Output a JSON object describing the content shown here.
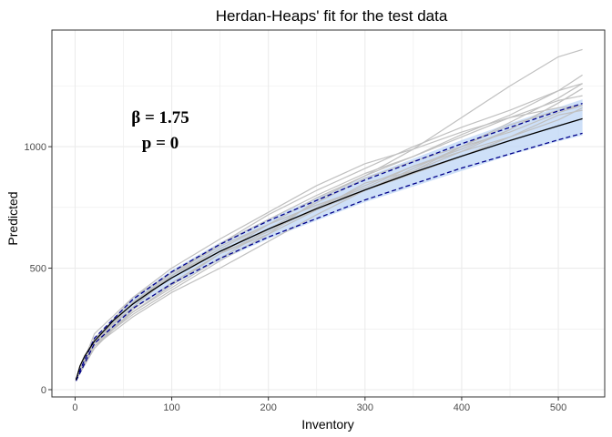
{
  "chart_data": {
    "type": "line",
    "title": "Herdan-Heaps' fit for the test data",
    "xlabel": "Inventory",
    "ylabel": "Predicted",
    "xlim": [
      -24,
      548
    ],
    "ylim": [
      -30,
      1480
    ],
    "x_ticks": [
      0,
      100,
      200,
      300,
      400,
      500
    ],
    "y_ticks": [
      0,
      500,
      1000
    ],
    "grid": true,
    "annotations": [
      "β = 1.75",
      "p = 0"
    ],
    "fit": {
      "x": [
        1,
        5,
        10,
        20,
        40,
        60,
        80,
        100,
        150,
        200,
        250,
        300,
        350,
        400,
        450,
        500,
        525
      ],
      "y": [
        40,
        97,
        139,
        200,
        286,
        353,
        409,
        460,
        569,
        661,
        745,
        822,
        894,
        961,
        1025,
        1086,
        1115
      ]
    },
    "ci_upper": {
      "x": [
        1,
        20,
        60,
        100,
        150,
        200,
        300,
        400,
        500,
        525
      ],
      "y": [
        44,
        212,
        372,
        485,
        598,
        695,
        863,
        1012,
        1147,
        1178
      ]
    },
    "ci_lower": {
      "x": [
        1,
        20,
        60,
        100,
        150,
        200,
        300,
        400,
        500,
        525
      ],
      "y": [
        36,
        190,
        335,
        436,
        540,
        628,
        781,
        912,
        1028,
        1055
      ]
    },
    "band_upper": {
      "x": [
        1,
        20,
        60,
        100,
        150,
        200,
        300,
        400,
        450,
        500,
        525
      ],
      "y": [
        44,
        214,
        378,
        492,
        606,
        703,
        875,
        1027,
        1097,
        1162,
        1195
      ]
    },
    "band_lower": {
      "x": [
        1,
        20,
        60,
        100,
        150,
        200,
        300,
        400,
        450,
        500,
        525
      ],
      "y": [
        36,
        188,
        330,
        430,
        532,
        620,
        772,
        900,
        965,
        1022,
        1046
      ]
    },
    "samples": [
      {
        "x": [
          1,
          20,
          60,
          100,
          150,
          200,
          250,
          300,
          350,
          400,
          450,
          500,
          525
        ],
        "y": [
          40,
          170,
          330,
          440,
          560,
          680,
          790,
          880,
          960,
          1050,
          1130,
          1230,
          1295
        ]
      },
      {
        "x": [
          1,
          20,
          60,
          100,
          150,
          200,
          250,
          300,
          350,
          400,
          450,
          500,
          525
        ],
        "y": [
          40,
          230,
          380,
          500,
          620,
          730,
          840,
          930,
          990,
          1060,
          1120,
          1160,
          1170
        ]
      },
      {
        "x": [
          1,
          20,
          60,
          100,
          150,
          200,
          250,
          300,
          350,
          400,
          450,
          500,
          525
        ],
        "y": [
          40,
          190,
          310,
          410,
          530,
          640,
          740,
          850,
          900,
          1000,
          1100,
          1200,
          1260
        ]
      },
      {
        "x": [
          1,
          20,
          60,
          100,
          150,
          200,
          250,
          300,
          350,
          400,
          450,
          500,
          525
        ],
        "y": [
          40,
          210,
          360,
          480,
          590,
          680,
          760,
          820,
          890,
          960,
          1040,
          1130,
          1150
        ]
      },
      {
        "x": [
          1,
          20,
          60,
          100,
          150,
          200,
          250,
          300,
          350,
          400,
          450,
          500,
          525
        ],
        "y": [
          40,
          200,
          320,
          420,
          540,
          660,
          770,
          870,
          940,
          1000,
          1060,
          1140,
          1170
        ]
      },
      {
        "x": [
          1,
          20,
          60,
          100,
          150,
          200,
          250,
          300,
          350,
          400,
          450,
          500,
          525
        ],
        "y": [
          40,
          190,
          360,
          470,
          600,
          720,
          820,
          910,
          1000,
          1080,
          1150,
          1230,
          1260
        ]
      },
      {
        "x": [
          1,
          20,
          60,
          100,
          150,
          200,
          250,
          300,
          350,
          400,
          450,
          500,
          525
        ],
        "y": [
          40,
          210,
          340,
          470,
          580,
          680,
          760,
          830,
          920,
          990,
          1070,
          1180,
          1240
        ]
      },
      {
        "x": [
          1,
          20,
          60,
          100,
          150,
          200,
          250,
          300,
          350,
          400,
          450,
          500,
          525
        ],
        "y": [
          40,
          180,
          320,
          430,
          560,
          650,
          750,
          840,
          920,
          980,
          1040,
          1110,
          1160
        ]
      },
      {
        "x": [
          1,
          20,
          60,
          100,
          150,
          200,
          250,
          300,
          350,
          400,
          450,
          500,
          525
        ],
        "y": [
          40,
          200,
          380,
          480,
          600,
          700,
          800,
          890,
          960,
          1040,
          1120,
          1190,
          1210
        ]
      },
      {
        "x": [
          1,
          20,
          60,
          100,
          150,
          200,
          250,
          300,
          350,
          400,
          450,
          500,
          525
        ],
        "y": [
          40,
          180,
          300,
          400,
          500,
          610,
          720,
          820,
          900,
          980,
          1070,
          1180,
          1240
        ]
      },
      {
        "x": [
          1,
          20,
          60,
          100,
          150,
          200,
          250,
          300,
          350,
          400,
          450,
          500,
          525
        ],
        "y": [
          40,
          190,
          320,
          430,
          560,
          640,
          780,
          880,
          990,
          1120,
          1250,
          1370,
          1400
        ]
      },
      {
        "x": [
          1,
          20,
          60,
          100,
          150,
          200,
          250,
          300,
          350,
          400,
          450,
          500,
          525
        ],
        "y": [
          40,
          200,
          340,
          470,
          570,
          660,
          740,
          820,
          910,
          1000,
          1090,
          1150,
          1170
        ]
      }
    ],
    "colors": {
      "band": "#c6dbf7",
      "fit": "#000000",
      "ci": "#00008b",
      "samples": "#c0c0c0",
      "grid": "#ebebeb",
      "panel_border": "#333333"
    }
  }
}
